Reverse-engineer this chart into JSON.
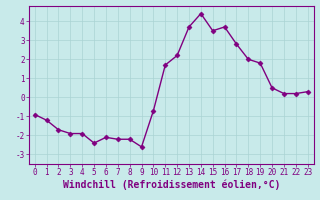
{
  "x": [
    0,
    1,
    2,
    3,
    4,
    5,
    6,
    7,
    8,
    9,
    10,
    11,
    12,
    13,
    14,
    15,
    16,
    17,
    18,
    19,
    20,
    21,
    22,
    23
  ],
  "y": [
    -0.9,
    -1.2,
    -1.7,
    -1.9,
    -1.9,
    -2.4,
    -2.1,
    -2.2,
    -2.2,
    -2.6,
    -0.7,
    1.7,
    2.2,
    3.7,
    4.4,
    3.5,
    3.7,
    2.8,
    2.0,
    1.8,
    0.5,
    0.2,
    0.2,
    0.3
  ],
  "line_color": "#800080",
  "marker_color": "#800080",
  "bg_color": "#c8eaea",
  "grid_color": "#aad4d4",
  "xlabel": "Windchill (Refroidissement éolien,°C)",
  "ylim": [
    -3.5,
    4.8
  ],
  "xlim": [
    -0.5,
    23.5
  ],
  "yticks": [
    -3,
    -2,
    -1,
    0,
    1,
    2,
    3,
    4
  ],
  "xticks": [
    0,
    1,
    2,
    3,
    4,
    5,
    6,
    7,
    8,
    9,
    10,
    11,
    12,
    13,
    14,
    15,
    16,
    17,
    18,
    19,
    20,
    21,
    22,
    23
  ],
  "tick_fontsize": 5.5,
  "xlabel_fontsize": 7.0,
  "line_width": 1.0,
  "marker_size": 2.5
}
